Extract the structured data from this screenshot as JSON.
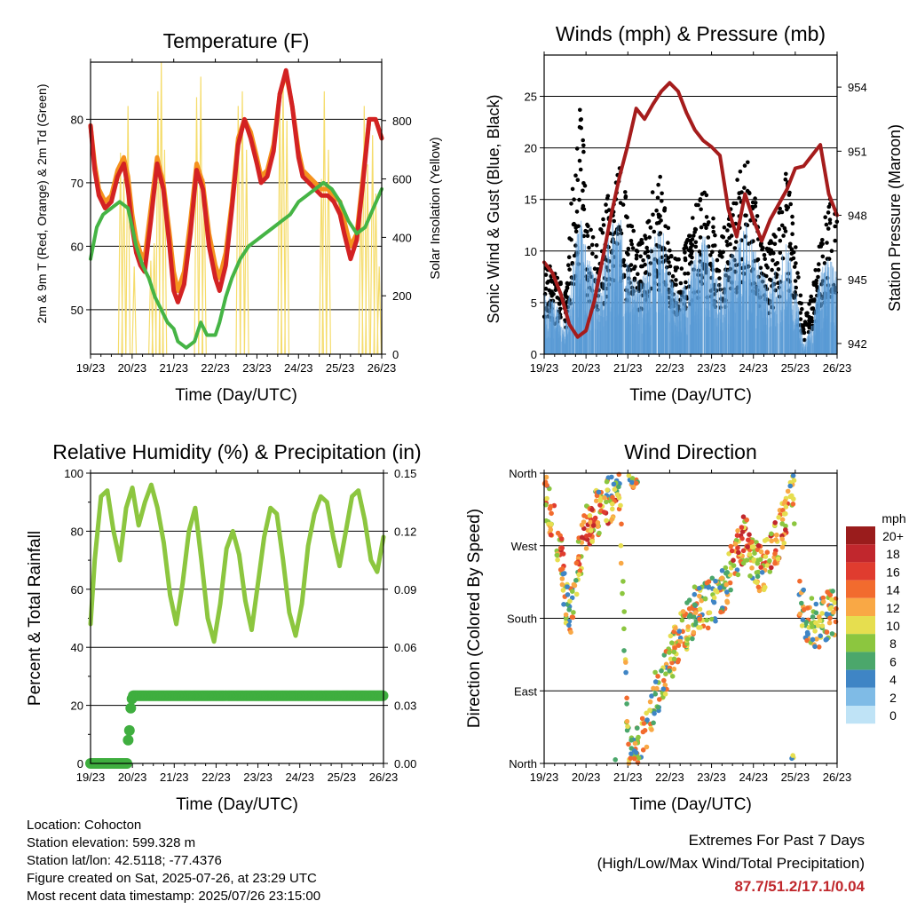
{
  "x_ticks": [
    "19/23",
    "20/23",
    "21/23",
    "22/23",
    "23/23",
    "24/23",
    "25/23",
    "26/23"
  ],
  "footer": {
    "location": "Location: Cohocton",
    "elevation": "Station elevation: 599.328 m",
    "latlon": "Station lat/lon: 42.5118; -77.4376",
    "created": "Figure created on Sat, 2025-07-26, at 23:29 UTC",
    "recent": "Most recent data timestamp: 2025/07/26 23:15:00"
  },
  "extremes": {
    "title": "Extremes For Past 7 Days",
    "subtitle": "(High/Low/Max Wind/Total Precipitation)",
    "values": "87.7/51.2/17.1/0.04",
    "value_color": "#c0282d"
  },
  "chart_data": [
    {
      "id": "temperature",
      "type": "line",
      "title": "Temperature (F)",
      "xlabel": "Time (Day/UTC)",
      "ylabel": "2m & 9m T (Red, Orange) & 2m Td (Green)",
      "ylabel_right": "Solar Insolation (Yellow)",
      "x_domain": [
        0,
        7
      ],
      "ylim": [
        43,
        89
      ],
      "yticks": [
        50,
        60,
        70,
        80
      ],
      "ylim_right": [
        0,
        1000
      ],
      "yticks_right": [
        0,
        200,
        400,
        600,
        800
      ],
      "series": [
        {
          "color": "#f5921e",
          "width": 5,
          "axis": "left",
          "x": [
            0,
            0.1,
            0.2,
            0.35,
            0.5,
            0.65,
            0.8,
            0.9,
            1.0,
            1.1,
            1.2,
            1.3,
            1.45,
            1.6,
            1.75,
            1.9,
            2.0,
            2.1,
            2.25,
            2.4,
            2.55,
            2.7,
            2.85,
            3.0,
            3.1,
            3.25,
            3.4,
            3.55,
            3.7,
            3.85,
            4.0,
            4.1,
            4.25,
            4.4,
            4.55,
            4.7,
            4.85,
            5.0,
            5.1,
            5.25,
            5.4,
            5.55,
            5.7,
            5.85,
            6.0,
            6.1,
            6.25,
            6.4,
            6.55,
            6.7,
            6.85,
            7.0
          ],
          "y": [
            79,
            73,
            69,
            67,
            68,
            72,
            74,
            71,
            65,
            61,
            59,
            58,
            66,
            74,
            70,
            62,
            56,
            53,
            56,
            64,
            73,
            70,
            62,
            57,
            55,
            59,
            67,
            77,
            80,
            78,
            74,
            71,
            72,
            76,
            84,
            87.3,
            82,
            75,
            72,
            71,
            70,
            69,
            69,
            68,
            67,
            64,
            60,
            62,
            71,
            80,
            80,
            77
          ]
        },
        {
          "color": "#d32223",
          "width": 5,
          "axis": "left",
          "x": [
            0,
            0.1,
            0.2,
            0.35,
            0.5,
            0.65,
            0.8,
            0.9,
            1.0,
            1.1,
            1.2,
            1.3,
            1.45,
            1.6,
            1.75,
            1.9,
            2.0,
            2.1,
            2.25,
            2.4,
            2.55,
            2.7,
            2.85,
            3.0,
            3.1,
            3.25,
            3.4,
            3.55,
            3.7,
            3.85,
            4.0,
            4.1,
            4.25,
            4.4,
            4.55,
            4.7,
            4.85,
            5.0,
            5.1,
            5.25,
            5.4,
            5.55,
            5.7,
            5.85,
            6.0,
            6.1,
            6.25,
            6.4,
            6.55,
            6.7,
            6.85,
            7.0
          ],
          "y": [
            79,
            72,
            68,
            66,
            67,
            71,
            73,
            69,
            63,
            59,
            57,
            56,
            64,
            73,
            69,
            60,
            53,
            51.2,
            54,
            62,
            72,
            69,
            60,
            55,
            53,
            57,
            66,
            76,
            80,
            77,
            73,
            70,
            71,
            75,
            84,
            87.7,
            82,
            74,
            71,
            70,
            69,
            68,
            68,
            67,
            65,
            62,
            58,
            61,
            70,
            80,
            80,
            77
          ]
        },
        {
          "color": "#45b445",
          "width": 4,
          "axis": "left",
          "x": [
            0,
            0.15,
            0.3,
            0.5,
            0.7,
            0.9,
            1.0,
            1.1,
            1.25,
            1.4,
            1.55,
            1.7,
            1.85,
            2.0,
            2.1,
            2.3,
            2.5,
            2.65,
            2.8,
            3.0,
            3.1,
            3.25,
            3.4,
            3.6,
            3.8,
            4.0,
            4.2,
            4.4,
            4.6,
            4.8,
            5.0,
            5.2,
            5.4,
            5.6,
            5.8,
            6.0,
            6.2,
            6.4,
            6.6,
            6.8,
            7.0
          ],
          "y": [
            58,
            63,
            65,
            66,
            67,
            66,
            63,
            60,
            57,
            55,
            52,
            50,
            48,
            47,
            45,
            44,
            45,
            48,
            46,
            46,
            48,
            52,
            55,
            58,
            60,
            61,
            62,
            63,
            64,
            65,
            67,
            68,
            69,
            70,
            69,
            67,
            64,
            62,
            63,
            66,
            69
          ]
        }
      ],
      "solar_peaks": [
        {
          "day": 0.72,
          "wm2": 690
        },
        {
          "day": 0.8,
          "wm2": 600
        },
        {
          "day": 0.9,
          "wm2": 850
        },
        {
          "day": 1.05,
          "wm2": 300
        },
        {
          "day": 1.45,
          "wm2": 320
        },
        {
          "day": 1.53,
          "wm2": 380
        },
        {
          "day": 1.62,
          "wm2": 900
        },
        {
          "day": 1.7,
          "wm2": 1000
        },
        {
          "day": 1.78,
          "wm2": 700
        },
        {
          "day": 2.55,
          "wm2": 880
        },
        {
          "day": 2.65,
          "wm2": 950
        },
        {
          "day": 2.73,
          "wm2": 600
        },
        {
          "day": 3.55,
          "wm2": 850
        },
        {
          "day": 3.65,
          "wm2": 900
        },
        {
          "day": 3.75,
          "wm2": 700
        },
        {
          "day": 4.55,
          "wm2": 880
        },
        {
          "day": 4.63,
          "wm2": 950
        },
        {
          "day": 4.72,
          "wm2": 800
        },
        {
          "day": 5.55,
          "wm2": 600
        },
        {
          "day": 5.62,
          "wm2": 900
        },
        {
          "day": 5.72,
          "wm2": 700
        },
        {
          "day": 6.5,
          "wm2": 550
        },
        {
          "day": 6.58,
          "wm2": 850
        },
        {
          "day": 6.66,
          "wm2": 650
        },
        {
          "day": 6.78,
          "wm2": 750
        },
        {
          "day": 6.86,
          "wm2": 550
        },
        {
          "day": 6.94,
          "wm2": 300
        }
      ]
    },
    {
      "id": "winds",
      "type": "scatter",
      "title": "Winds (mph) & Pressure (mb)",
      "xlabel": "Time (Day/UTC)",
      "ylabel": "Sonic Wind & Gust (Blue, Black)",
      "ylabel_right": "Station Pressure (Maroon)",
      "x_domain": [
        0,
        7
      ],
      "ylim": [
        0,
        29
      ],
      "yticks": [
        0,
        5,
        10,
        15,
        20,
        25
      ],
      "ylim_right": [
        941.5,
        955.5
      ],
      "yticks_right": [
        942,
        945,
        948,
        951,
        954
      ],
      "wind_envelope": {
        "x": [
          0,
          0.3,
          0.5,
          0.75,
          0.9,
          1.0,
          1.2,
          1.4,
          1.6,
          1.8,
          2.0,
          2.2,
          2.4,
          2.6,
          2.8,
          3.0,
          3.2,
          3.4,
          3.6,
          3.8,
          4.0,
          4.2,
          4.4,
          4.6,
          4.8,
          5.0,
          5.2,
          5.4,
          5.6,
          5.8,
          6.0,
          6.2,
          6.4,
          6.6,
          6.8,
          7.0
        ],
        "y": [
          6,
          5,
          3,
          11,
          14,
          10,
          8,
          9,
          13,
          14,
          9,
          7,
          8,
          12,
          13,
          8,
          6,
          7,
          10,
          12,
          10,
          8,
          9,
          11,
          13,
          11,
          8,
          7,
          9,
          11,
          7,
          1,
          3,
          8,
          10,
          8
        ]
      },
      "gust_envelope": {
        "x": [
          0,
          0.3,
          0.5,
          0.75,
          0.9,
          1.0,
          1.2,
          1.4,
          1.6,
          1.8,
          2.0,
          2.2,
          2.4,
          2.6,
          2.8,
          3.0,
          3.2,
          3.4,
          3.6,
          3.8,
          4.0,
          4.2,
          4.4,
          4.6,
          4.8,
          5.0,
          5.2,
          5.4,
          5.6,
          5.8,
          6.0,
          6.2,
          6.4,
          6.6,
          6.8,
          7.0
        ],
        "y": [
          9,
          8,
          6,
          21,
          25,
          15,
          11,
          13,
          18,
          20,
          14,
          11,
          12,
          17,
          18,
          12,
          10,
          11,
          14,
          17,
          14,
          12,
          13,
          17,
          20,
          16,
          12,
          11,
          15,
          18,
          11,
          3,
          6,
          12,
          16,
          13
        ]
      },
      "pressure": {
        "x": [
          0,
          0.2,
          0.4,
          0.6,
          0.8,
          1.0,
          1.2,
          1.4,
          1.6,
          1.8,
          2.0,
          2.2,
          2.4,
          2.6,
          2.8,
          3.0,
          3.2,
          3.4,
          3.6,
          3.8,
          4.0,
          4.2,
          4.4,
          4.6,
          4.8,
          5.0,
          5.2,
          5.4,
          5.6,
          5.8,
          6.0,
          6.2,
          6.4,
          6.6,
          6.8,
          7.0
        ],
        "y": [
          945.8,
          945.3,
          944.3,
          942.9,
          942.3,
          942.6,
          944.0,
          946.0,
          948.0,
          949.8,
          951.3,
          953.0,
          952.5,
          953.2,
          953.8,
          954.2,
          953.8,
          952.8,
          952.0,
          951.5,
          951.2,
          950.8,
          948.3,
          947.0,
          949.0,
          947.8,
          946.8,
          947.8,
          948.5,
          949.2,
          950.2,
          950.3,
          950.8,
          951.3,
          949.0,
          948.0
        ]
      }
    },
    {
      "id": "humidity",
      "type": "line",
      "title": "Relative Humidity (%) & Precipitation (in)",
      "xlabel": "Time (Day/UTC)",
      "ylabel": "Percent & Total Rainfall",
      "x_domain": [
        0,
        7
      ],
      "ylim": [
        0,
        100
      ],
      "yticks": [
        0,
        20,
        40,
        60,
        80,
        100
      ],
      "ylim_right": [
        0,
        0.15
      ],
      "yticks_right": [
        "0.00",
        "0.03",
        "0.06",
        "0.09",
        "0.12",
        "0.15"
      ],
      "series": [
        {
          "color": "#8cc63f",
          "width": 5,
          "x": [
            0,
            0.1,
            0.25,
            0.4,
            0.55,
            0.7,
            0.85,
            1.0,
            1.15,
            1.3,
            1.45,
            1.6,
            1.75,
            1.9,
            2.05,
            2.2,
            2.35,
            2.5,
            2.65,
            2.8,
            2.95,
            3.1,
            3.25,
            3.4,
            3.55,
            3.7,
            3.85,
            4.0,
            4.15,
            4.3,
            4.45,
            4.6,
            4.75,
            4.9,
            5.05,
            5.2,
            5.35,
            5.5,
            5.65,
            5.8,
            5.95,
            6.1,
            6.25,
            6.4,
            6.55,
            6.7,
            6.85,
            7.0
          ],
          "y": [
            48,
            70,
            92,
            94,
            80,
            70,
            88,
            95,
            82,
            90,
            96,
            88,
            76,
            58,
            48,
            62,
            80,
            88,
            70,
            50,
            42,
            55,
            74,
            80,
            72,
            56,
            46,
            62,
            78,
            88,
            86,
            70,
            52,
            44,
            55,
            75,
            86,
            92,
            90,
            78,
            68,
            80,
            92,
            94,
            84,
            70,
            66,
            78
          ]
        }
      ],
      "precip_points_x": [
        0.0,
        0.1,
        0.2,
        0.3,
        0.4,
        0.5,
        0.6,
        0.7,
        0.8,
        0.88,
        0.9,
        0.92,
        0.95,
        1.0,
        1.1,
        1.3,
        1.5,
        1.7,
        1.9,
        2.1,
        2.3,
        2.5,
        2.7,
        2.9,
        3.1,
        3.3,
        3.5,
        3.7,
        3.9,
        4.1,
        4.3,
        4.5,
        4.7,
        4.9,
        5.1,
        5.3,
        5.5,
        5.7,
        5.9,
        6.1,
        6.3,
        6.5,
        6.7,
        6.9,
        7.0
      ],
      "precip_points_y": [
        0,
        0,
        0,
        0,
        0,
        0,
        0,
        0,
        0,
        0,
        0.012,
        0.012,
        0.027,
        0.035,
        0.035,
        0.035,
        0.035,
        0.035,
        0.035,
        0.035,
        0.035,
        0.035,
        0.035,
        0.035,
        0.035,
        0.035,
        0.035,
        0.035,
        0.035,
        0.035,
        0.035,
        0.035,
        0.035,
        0.035,
        0.035,
        0.035,
        0.035,
        0.035,
        0.035,
        0.035,
        0.035,
        0.035,
        0.035,
        0.035,
        0.035
      ],
      "precip_color": "#3fae3f"
    },
    {
      "id": "direction",
      "type": "scatter",
      "title": "Wind Direction",
      "xlabel": "Time (Day/UTC)",
      "ylabel": "Direction (Colored By Speed)",
      "x_domain": [
        0,
        7
      ],
      "ylim": [
        0,
        360
      ],
      "yticks": [
        0,
        90,
        180,
        270,
        360
      ],
      "ytick_labels": [
        "North",
        "East",
        "South",
        "West",
        "North"
      ],
      "track": {
        "x": [
          0,
          0.2,
          0.4,
          0.5,
          0.6,
          0.75,
          0.9,
          1.0,
          1.2,
          1.4,
          1.6,
          1.8,
          2.0,
          2.1,
          2.3,
          2.5,
          2.7,
          2.9,
          3.0,
          3.2,
          3.4,
          3.6,
          3.8,
          4.0,
          4.2,
          4.4,
          4.6,
          4.8,
          5.0,
          5.2,
          5.4,
          5.6,
          5.8,
          5.95,
          6.1,
          6.3,
          6.5,
          6.7,
          6.9,
          7.0
        ],
        "y": [
          340,
          300,
          260,
          210,
          180,
          230,
          270,
          290,
          305,
          320,
          330,
          340,
          20,
          10,
          20,
          60,
          90,
          110,
          130,
          150,
          170,
          190,
          195,
          200,
          210,
          230,
          260,
          280,
          250,
          240,
          260,
          280,
          310,
          350,
          200,
          180,
          170,
          180,
          190,
          185
        ]
      },
      "legend_title": "mph",
      "legend_labels": [
        "20+",
        "18",
        "16",
        "14",
        "12",
        "10",
        "8",
        "6",
        "4",
        "2",
        "0"
      ],
      "legend_colors": [
        "#9a1c1c",
        "#c1272d",
        "#e03c2f",
        "#f26b2e",
        "#f9a845",
        "#e6de4f",
        "#8cc63f",
        "#4ba76b",
        "#3f85c5",
        "#7fbbe6",
        "#bfe3f6"
      ]
    }
  ]
}
